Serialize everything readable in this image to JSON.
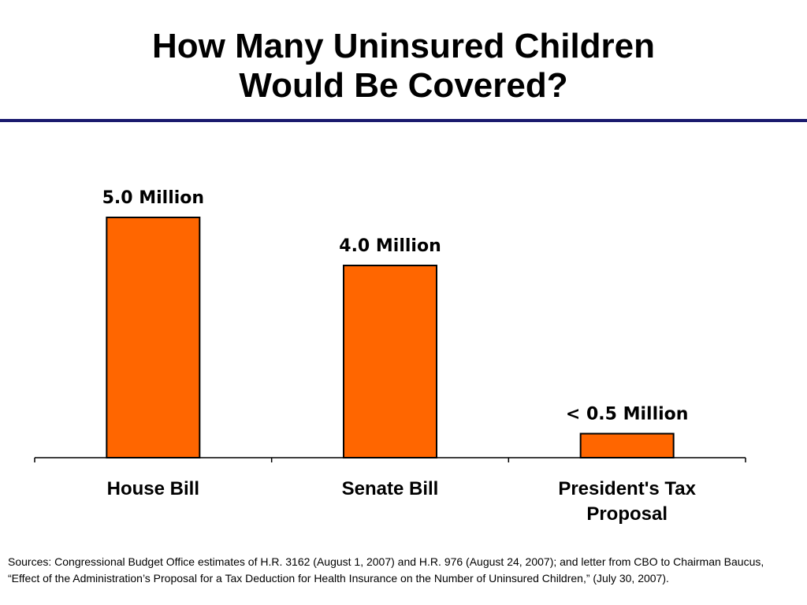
{
  "slide": {
    "title_line1": "How Many Uninsured Children",
    "title_line2": "Would Be Covered?",
    "sources": "Sources: Congressional Budget Office estimates of H.R. 3162 (August 1, 2007) and H.R. 976 (August 24, 2007); and letter from CBO to Chairman Baucus, “Effect of the Administration’s Proposal for a Tax Deduction for Health Insurance on the Number of Uninsured Children,” (July 30, 2007)."
  },
  "colors": {
    "bar": "#ff6600",
    "bar_stroke": "#000000",
    "rule": "#1a1a6e"
  },
  "chart_data": {
    "type": "bar",
    "categories": [
      [
        "House Bill"
      ],
      [
        "Senate Bill"
      ],
      [
        "President's Tax",
        "Proposal"
      ]
    ],
    "values": [
      5.0,
      4.0,
      0.5
    ],
    "data_labels": [
      "5.0 Million",
      "4.0 Million",
      "< 0.5 Million"
    ],
    "ylim": [
      0,
      5.0
    ],
    "grid": false,
    "legend": "none"
  }
}
